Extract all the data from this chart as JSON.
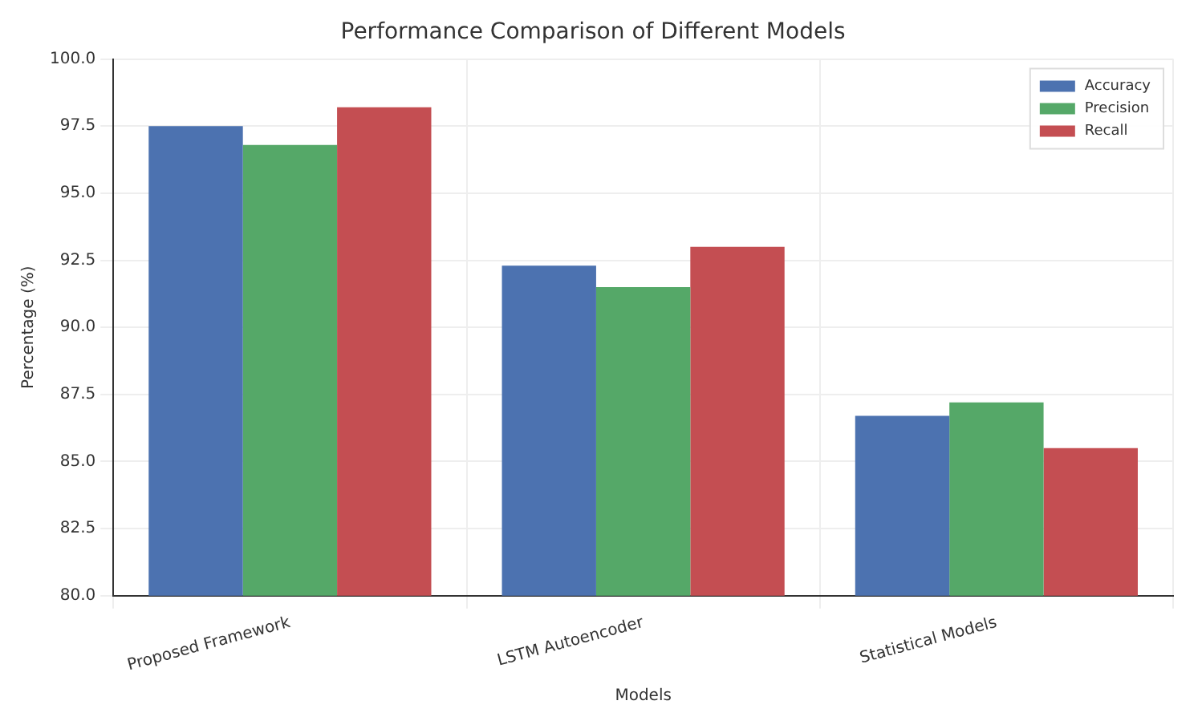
{
  "chart_data": {
    "type": "bar",
    "title": "Performance Comparison of Different Models",
    "xlabel": "Models",
    "ylabel": "Percentage (%)",
    "categories": [
      "Proposed Framework",
      "LSTM Autoencoder",
      "Statistical Models"
    ],
    "series": [
      {
        "name": "Accuracy",
        "color": "#4c72b0",
        "values": [
          97.5,
          92.3,
          86.7
        ]
      },
      {
        "name": "Precision",
        "color": "#55a868",
        "values": [
          96.8,
          91.5,
          87.2
        ]
      },
      {
        "name": "Recall",
        "color": "#c44e52",
        "values": [
          98.2,
          93.0,
          85.5
        ]
      }
    ],
    "ylim": [
      80,
      100
    ],
    "yticks": [
      {
        "value": 80,
        "label": "80.0"
      },
      {
        "value": 82.5,
        "label": "82.5"
      },
      {
        "value": 85,
        "label": "85.0"
      },
      {
        "value": 87.5,
        "label": "87.5"
      },
      {
        "value": 90,
        "label": "90.0"
      },
      {
        "value": 92.5,
        "label": "92.5"
      },
      {
        "value": 95,
        "label": "95.0"
      },
      {
        "value": 97.5,
        "label": "97.5"
      },
      {
        "value": 100,
        "label": "100.0"
      }
    ],
    "grid": true,
    "legend": "top right"
  }
}
